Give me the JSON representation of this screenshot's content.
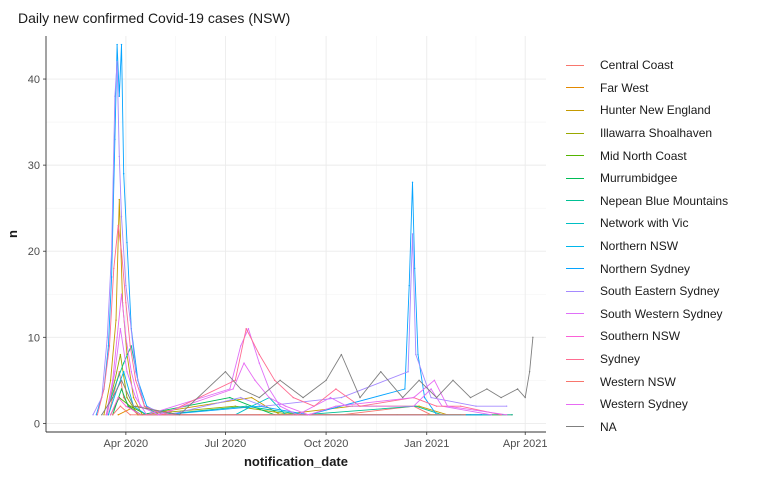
{
  "chart_data": {
    "type": "line",
    "title": "Daily new confirmed Covid-19 cases (NSW)",
    "xlabel": "notification_date",
    "ylabel": "n",
    "xlim": [
      "2020-01-19",
      "2021-04-20"
    ],
    "ylim": [
      -1,
      45
    ],
    "x_ticks": [
      {
        "date": "2020-04-01",
        "label": "Apr 2020"
      },
      {
        "date": "2020-07-01",
        "label": "Jul 2020"
      },
      {
        "date": "2020-10-01",
        "label": "Oct 2020"
      },
      {
        "date": "2021-01-01",
        "label": "Jan 2021"
      },
      {
        "date": "2021-04-01",
        "label": "Apr 2021"
      }
    ],
    "y_ticks": [
      0,
      10,
      20,
      30,
      40
    ],
    "grid": true,
    "legend_position": "right",
    "series": [
      {
        "name": "Central Coast",
        "color": "#F8766D",
        "points": [
          [
            "2020-03-16",
            1
          ],
          [
            "2020-03-22",
            4
          ],
          [
            "2020-03-26",
            6
          ],
          [
            "2020-03-30",
            3
          ],
          [
            "2020-04-04",
            2
          ],
          [
            "2020-04-12",
            1
          ],
          [
            "2020-07-20",
            1
          ],
          [
            "2020-10-15",
            1
          ],
          [
            "2020-12-20",
            2
          ],
          [
            "2021-01-05",
            1
          ],
          [
            "2021-03-20",
            1
          ]
        ]
      },
      {
        "name": "Far West",
        "color": "#E38900",
        "points": [
          [
            "2020-03-25",
            1
          ],
          [
            "2020-04-10",
            2
          ],
          [
            "2020-05-20",
            1
          ],
          [
            "2020-08-15",
            1
          ],
          [
            "2020-11-20",
            1
          ],
          [
            "2021-02-10",
            1
          ]
        ]
      },
      {
        "name": "Hunter New England",
        "color": "#C49A00",
        "points": [
          [
            "2020-03-12",
            1
          ],
          [
            "2020-03-18",
            5
          ],
          [
            "2020-03-23",
            12
          ],
          [
            "2020-03-26",
            26
          ],
          [
            "2020-03-29",
            14
          ],
          [
            "2020-04-02",
            8
          ],
          [
            "2020-04-08",
            3
          ],
          [
            "2020-04-16",
            1
          ],
          [
            "2020-07-25",
            3
          ],
          [
            "2020-08-20",
            1
          ],
          [
            "2020-10-25",
            2
          ],
          [
            "2020-12-25",
            2
          ],
          [
            "2021-01-20",
            1
          ],
          [
            "2021-03-10",
            1
          ]
        ]
      },
      {
        "name": "Illawarra Shoalhaven",
        "color": "#99A800",
        "points": [
          [
            "2020-03-14",
            1
          ],
          [
            "2020-03-22",
            5
          ],
          [
            "2020-03-27",
            8
          ],
          [
            "2020-04-02",
            3
          ],
          [
            "2020-04-12",
            1
          ],
          [
            "2020-07-10",
            2
          ],
          [
            "2020-09-01",
            1
          ],
          [
            "2020-12-28",
            1
          ],
          [
            "2021-02-20",
            1
          ]
        ]
      },
      {
        "name": "Mid North Coast",
        "color": "#53B400",
        "points": [
          [
            "2020-03-18",
            1
          ],
          [
            "2020-03-26",
            3
          ],
          [
            "2020-04-05",
            2
          ],
          [
            "2020-04-20",
            1
          ],
          [
            "2020-07-01",
            1
          ],
          [
            "2020-10-01",
            1
          ],
          [
            "2021-01-10",
            1
          ]
        ]
      },
      {
        "name": "Murrumbidgee",
        "color": "#00BC56",
        "points": [
          [
            "2020-03-20",
            1
          ],
          [
            "2020-03-28",
            4
          ],
          [
            "2020-04-03",
            2
          ],
          [
            "2020-04-15",
            1
          ],
          [
            "2020-07-05",
            3
          ],
          [
            "2020-07-25",
            2
          ],
          [
            "2020-08-15",
            1
          ],
          [
            "2020-12-05",
            1
          ],
          [
            "2021-02-01",
            1
          ]
        ]
      },
      {
        "name": "Nepean Blue Mountains",
        "color": "#00C094",
        "points": [
          [
            "2020-03-16",
            2
          ],
          [
            "2020-03-24",
            5
          ],
          [
            "2020-03-30",
            7
          ],
          [
            "2020-04-06",
            9
          ],
          [
            "2020-04-12",
            5
          ],
          [
            "2020-04-18",
            2
          ],
          [
            "2020-05-01",
            1
          ],
          [
            "2020-07-20",
            2
          ],
          [
            "2020-09-10",
            1
          ],
          [
            "2020-12-22",
            2
          ],
          [
            "2021-01-15",
            1
          ],
          [
            "2021-03-20",
            1
          ]
        ]
      },
      {
        "name": "Network with Vic",
        "color": "#00BFC4",
        "points": [
          [
            "2020-07-10",
            1
          ],
          [
            "2020-07-25",
            2
          ],
          [
            "2020-08-10",
            3
          ],
          [
            "2020-08-25",
            1
          ],
          [
            "2020-09-20",
            1
          ],
          [
            "2020-12-28",
            1
          ]
        ]
      },
      {
        "name": "Northern NSW",
        "color": "#00B6EB",
        "points": [
          [
            "2020-03-16",
            1
          ],
          [
            "2020-03-24",
            4
          ],
          [
            "2020-03-30",
            6
          ],
          [
            "2020-04-08",
            2
          ],
          [
            "2020-04-20",
            1
          ],
          [
            "2020-08-10",
            1
          ],
          [
            "2020-12-15",
            1
          ],
          [
            "2021-03-01",
            1
          ]
        ]
      },
      {
        "name": "Northern Sydney",
        "color": "#06A4FF",
        "points": [
          [
            "2020-03-05",
            1
          ],
          [
            "2020-03-12",
            4
          ],
          [
            "2020-03-16",
            9
          ],
          [
            "2020-03-19",
            17
          ],
          [
            "2020-03-22",
            33
          ],
          [
            "2020-03-24",
            44
          ],
          [
            "2020-03-26",
            38
          ],
          [
            "2020-03-28",
            44
          ],
          [
            "2020-03-30",
            29
          ],
          [
            "2020-04-02",
            21
          ],
          [
            "2020-04-06",
            11
          ],
          [
            "2020-04-12",
            5
          ],
          [
            "2020-04-20",
            2
          ],
          [
            "2020-05-05",
            1
          ],
          [
            "2020-08-01",
            2
          ],
          [
            "2020-09-15",
            1
          ],
          [
            "2020-12-12",
            4
          ],
          [
            "2020-12-16",
            16
          ],
          [
            "2020-12-19",
            28
          ],
          [
            "2020-12-21",
            18
          ],
          [
            "2020-12-24",
            8
          ],
          [
            "2020-12-30",
            3
          ],
          [
            "2021-01-10",
            1
          ],
          [
            "2021-02-20",
            1
          ]
        ]
      },
      {
        "name": "South Eastern Sydney",
        "color": "#A58AFF",
        "points": [
          [
            "2020-03-02",
            1
          ],
          [
            "2020-03-10",
            3
          ],
          [
            "2020-03-15",
            10
          ],
          [
            "2020-03-19",
            20
          ],
          [
            "2020-03-22",
            38
          ],
          [
            "2020-03-24",
            42
          ],
          [
            "2020-03-26",
            31
          ],
          [
            "2020-03-28",
            24
          ],
          [
            "2020-04-01",
            16
          ],
          [
            "2020-04-05",
            12
          ],
          [
            "2020-04-10",
            6
          ],
          [
            "2020-04-18",
            2
          ],
          [
            "2020-05-10",
            1
          ],
          [
            "2020-07-15",
            3
          ],
          [
            "2020-08-05",
            2
          ],
          [
            "2020-10-15",
            3
          ],
          [
            "2020-12-15",
            6
          ],
          [
            "2020-12-19",
            22
          ],
          [
            "2020-12-22",
            8
          ],
          [
            "2021-01-05",
            3
          ],
          [
            "2021-02-15",
            2
          ],
          [
            "2021-03-15",
            2
          ]
        ]
      },
      {
        "name": "South Western Sydney",
        "color": "#DF70F8",
        "points": [
          [
            "2020-03-15",
            1
          ],
          [
            "2020-03-22",
            6
          ],
          [
            "2020-03-27",
            11
          ],
          [
            "2020-04-02",
            6
          ],
          [
            "2020-04-10",
            3
          ],
          [
            "2020-04-20",
            1
          ],
          [
            "2020-07-05",
            4
          ],
          [
            "2020-07-15",
            9
          ],
          [
            "2020-07-22",
            11
          ],
          [
            "2020-08-01",
            7
          ],
          [
            "2020-08-10",
            4
          ],
          [
            "2020-08-20",
            2
          ],
          [
            "2020-09-05",
            1
          ],
          [
            "2020-10-05",
            3
          ],
          [
            "2020-10-20",
            2
          ],
          [
            "2020-12-20",
            2
          ],
          [
            "2021-01-05",
            4
          ],
          [
            "2021-01-15",
            2
          ],
          [
            "2021-03-01",
            1
          ]
        ]
      },
      {
        "name": "Southern NSW",
        "color": "#FB61D7",
        "points": [
          [
            "2020-03-18",
            1
          ],
          [
            "2020-03-25",
            3
          ],
          [
            "2020-04-01",
            2
          ],
          [
            "2020-04-15",
            1
          ],
          [
            "2020-07-10",
            1
          ],
          [
            "2020-09-01",
            1
          ],
          [
            "2021-01-01",
            1
          ]
        ]
      },
      {
        "name": "Sydney",
        "color": "#FF6C91",
        "points": [
          [
            "2020-03-06",
            1
          ],
          [
            "2020-03-12",
            4
          ],
          [
            "2020-03-17",
            9
          ],
          [
            "2020-03-21",
            18
          ],
          [
            "2020-03-25",
            23
          ],
          [
            "2020-03-28",
            20
          ],
          [
            "2020-04-01",
            14
          ],
          [
            "2020-04-05",
            9
          ],
          [
            "2020-04-10",
            5
          ],
          [
            "2020-04-18",
            2
          ],
          [
            "2020-05-05",
            1
          ],
          [
            "2020-07-10",
            5
          ],
          [
            "2020-07-20",
            11
          ],
          [
            "2020-08-01",
            8
          ],
          [
            "2020-08-15",
            5
          ],
          [
            "2020-09-01",
            3
          ],
          [
            "2020-09-20",
            2
          ],
          [
            "2020-10-10",
            4
          ],
          [
            "2020-11-01",
            2
          ],
          [
            "2020-12-20",
            3
          ],
          [
            "2021-01-10",
            2
          ],
          [
            "2021-02-01",
            2
          ],
          [
            "2021-03-10",
            1
          ]
        ]
      },
      {
        "name": "Western NSW",
        "color": "#F8766D",
        "points": [
          [
            "2020-03-20",
            1
          ],
          [
            "2020-03-27",
            2
          ],
          [
            "2020-04-05",
            1
          ],
          [
            "2020-08-01",
            1
          ],
          [
            "2020-11-01",
            1
          ],
          [
            "2021-02-05",
            1
          ]
        ]
      },
      {
        "name": "Western Sydney",
        "color": "#E76BF3",
        "points": [
          [
            "2020-03-14",
            1
          ],
          [
            "2020-03-20",
            5
          ],
          [
            "2020-03-24",
            10
          ],
          [
            "2020-03-28",
            15
          ],
          [
            "2020-04-01",
            10
          ],
          [
            "2020-04-06",
            6
          ],
          [
            "2020-04-14",
            2
          ],
          [
            "2020-05-01",
            1
          ],
          [
            "2020-07-08",
            4
          ],
          [
            "2020-07-18",
            7
          ],
          [
            "2020-07-28",
            5
          ],
          [
            "2020-08-10",
            3
          ],
          [
            "2020-08-25",
            2
          ],
          [
            "2020-09-15",
            1
          ],
          [
            "2020-10-10",
            2
          ],
          [
            "2020-12-20",
            3
          ],
          [
            "2021-01-08",
            5
          ],
          [
            "2021-01-20",
            2
          ],
          [
            "2021-03-15",
            1
          ]
        ]
      },
      {
        "name": "NA",
        "color": "#7F7F7F",
        "points": [
          [
            "2020-03-10",
            1
          ],
          [
            "2020-03-20",
            3
          ],
          [
            "2020-03-28",
            5
          ],
          [
            "2020-04-08",
            2
          ],
          [
            "2020-05-20",
            1
          ],
          [
            "2020-07-01",
            6
          ],
          [
            "2020-07-15",
            4
          ],
          [
            "2020-08-01",
            3
          ],
          [
            "2020-08-20",
            5
          ],
          [
            "2020-09-10",
            3
          ],
          [
            "2020-10-01",
            5
          ],
          [
            "2020-10-15",
            8
          ],
          [
            "2020-11-01",
            3
          ],
          [
            "2020-11-20",
            6
          ],
          [
            "2020-12-10",
            3
          ],
          [
            "2020-12-25",
            5
          ],
          [
            "2021-01-10",
            3
          ],
          [
            "2021-01-25",
            5
          ],
          [
            "2021-02-10",
            3
          ],
          [
            "2021-02-25",
            4
          ],
          [
            "2021-03-10",
            3
          ],
          [
            "2021-03-25",
            4
          ],
          [
            "2021-04-01",
            3
          ],
          [
            "2021-04-05",
            6
          ],
          [
            "2021-04-08",
            10
          ]
        ]
      }
    ]
  }
}
